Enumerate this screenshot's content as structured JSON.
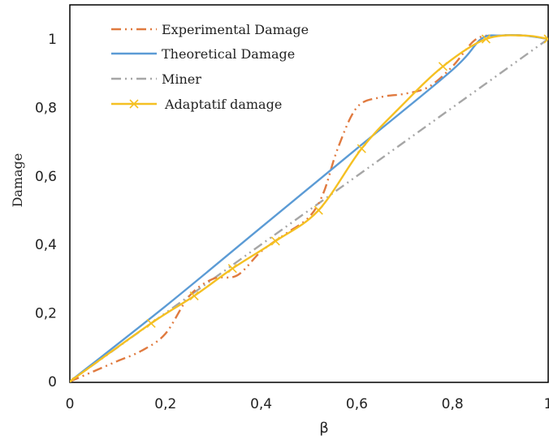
{
  "chart_data": {
    "type": "line",
    "title": "",
    "xlabel": "β",
    "ylabel": "Damage",
    "xlim": [
      0,
      1
    ],
    "ylim": [
      0,
      1.1
    ],
    "xticks": [
      0,
      0.2,
      0.4,
      0.6,
      0.8,
      1
    ],
    "xtick_labels": [
      "0",
      "0,2",
      "0,4",
      "0,6",
      "0,8",
      "1"
    ],
    "yticks": [
      0,
      0.2,
      0.4,
      0.6,
      0.8,
      1
    ],
    "ytick_labels": [
      "0",
      "0,2",
      "0,4",
      "0,6",
      "0,8",
      "1"
    ],
    "grid": false,
    "legend_position": "top-left",
    "series": [
      {
        "name": "Experimental Damage",
        "color": "#E07A3F",
        "dash": "dash-dot-dot",
        "marker": "none",
        "x": [
          0,
          0.05,
          0.1,
          0.15,
          0.2,
          0.25,
          0.3,
          0.35,
          0.4,
          0.45,
          0.5,
          0.53,
          0.56,
          0.6,
          0.65,
          0.7,
          0.75,
          0.8,
          0.85,
          0.9,
          0.95,
          1
        ],
        "y": [
          0,
          0.03,
          0.06,
          0.09,
          0.14,
          0.25,
          0.3,
          0.31,
          0.38,
          0.43,
          0.48,
          0.55,
          0.68,
          0.8,
          0.83,
          0.84,
          0.86,
          0.92,
          1.0,
          1.01,
          1.01,
          1.0
        ]
      },
      {
        "name": "Theoretical Damage",
        "color": "#5B9BD5",
        "dash": "solid",
        "marker": "none",
        "x": [
          0,
          0.2,
          0.4,
          0.6,
          0.8,
          0.86,
          0.9,
          0.95,
          1
        ],
        "y": [
          0,
          0.22,
          0.45,
          0.68,
          0.91,
          1.0,
          1.01,
          1.01,
          1.0
        ]
      },
      {
        "name": "Miner",
        "color": "#A6A6A6",
        "dash": "dash-dot-dot",
        "marker": "none",
        "x": [
          0,
          1
        ],
        "y": [
          0,
          1
        ]
      },
      {
        "name": "Adaptatif damage",
        "color": "#F5C022",
        "dash": "solid",
        "marker": "x",
        "x": [
          0,
          0.17,
          0.26,
          0.34,
          0.43,
          0.52,
          0.61,
          0.69,
          0.78,
          0.87,
          0.95,
          1
        ],
        "y": [
          0,
          0.17,
          0.25,
          0.33,
          0.41,
          0.5,
          0.68,
          0.8,
          0.92,
          1.0,
          1.01,
          1.0
        ],
        "marker_x": [
          0,
          0.17,
          0.26,
          0.34,
          0.43,
          0.52,
          0.61,
          0.78,
          0.87,
          1
        ],
        "marker_y": [
          0,
          0.17,
          0.25,
          0.33,
          0.41,
          0.5,
          0.68,
          0.92,
          1.0,
          1.0
        ]
      }
    ]
  }
}
